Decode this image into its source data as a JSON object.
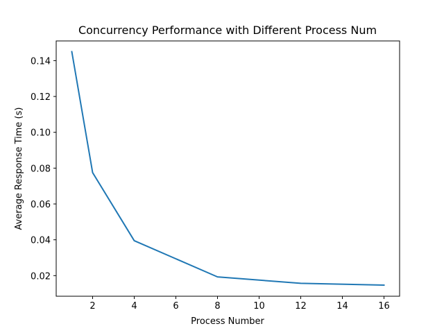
{
  "chart_data": {
    "type": "line",
    "title": "Concurrency Performance with Different Process Num",
    "xlabel": "Process Number",
    "ylabel": "Average Response Time (s)",
    "xlim": [
      0.25,
      16.75
    ],
    "ylim": [
      0.0085,
      0.151
    ],
    "x_ticks": [
      2,
      4,
      6,
      8,
      10,
      12,
      14,
      16
    ],
    "x_tick_labels": [
      "2",
      "4",
      "6",
      "8",
      "10",
      "12",
      "14",
      "16"
    ],
    "y_ticks": [
      0.02,
      0.04,
      0.06,
      0.08,
      0.1,
      0.12,
      0.14
    ],
    "y_tick_labels": [
      "0.02",
      "0.04",
      "0.06",
      "0.08",
      "0.10",
      "0.12",
      "0.14"
    ],
    "grid": false,
    "series": [
      {
        "x": [
          1,
          2,
          4,
          8,
          12,
          16
        ],
        "y": [
          0.145,
          0.0775,
          0.0395,
          0.0193,
          0.0157,
          0.0147
        ],
        "color": "#1f77b4"
      }
    ]
  }
}
